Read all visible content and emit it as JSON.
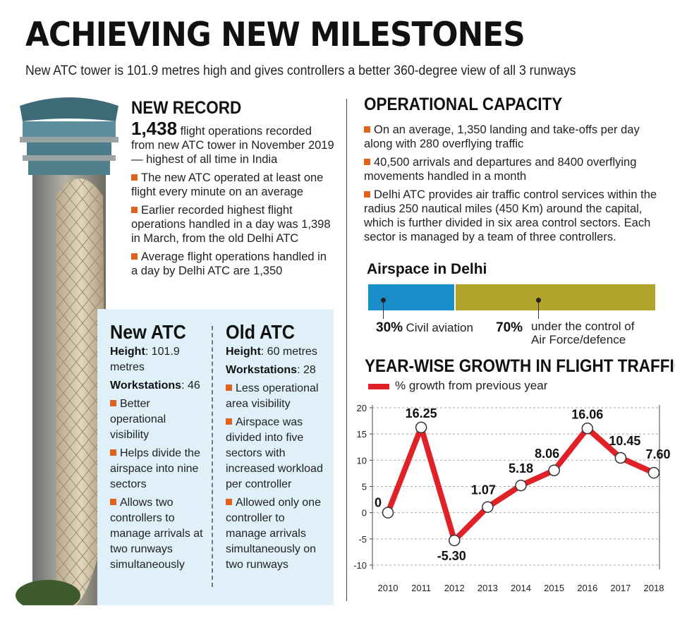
{
  "header": {
    "title": "ACHIEVING NEW MILESTONES",
    "subtitle": "New ATC tower is 101.9 metres high and gives controllers a better 360-degree view of all 3 runways"
  },
  "new_record": {
    "heading": "NEW RECORD",
    "big_number": "1,438",
    "lead": "flight operations recorded from new ATC tower in November 2019 — highest of all time in India",
    "bullets": [
      "The new ATC operated at least one flight every minute on an average",
      "Earlier recorded highest flight operations handled in a day was 1,398 in March, from the old Delhi ATC",
      "Average flight operations handled in a day by Delhi ATC are 1,350"
    ]
  },
  "new_atc": {
    "heading": "New ATC",
    "height_label": "Height",
    "height_value": ": 101.9 metres",
    "workstations_label": "Workstations",
    "workstations_value": ": 46",
    "bullets": [
      "Better operational visibility",
      "Helps divide the airspace into nine sectors",
      "Allows two controllers to manage arrivals at two runways simultaneously"
    ]
  },
  "old_atc": {
    "heading": "Old ATC",
    "height_label": "Height",
    "height_value": ": 60 metres",
    "workstations_label": "Workstations",
    "workstations_value": ": 28",
    "bullets": [
      "Less operational area visibility",
      "Airspace was divided into five sectors with increased workload per controller",
      "Allowed only one controller to manage arrivals simultaneously on two runways"
    ]
  },
  "operational_capacity": {
    "heading": "OPERATIONAL CAPACITY",
    "bullets": [
      "On an average, 1,350 landing and take-offs per day along with 280 overflying traffic",
      "40,500 arrivals and departures and 8400 overflying movements handled in a month",
      "Delhi ATC provides air traffic control services within the radius 250 nautical miles (450 Km) around the capital, which is further divided in six area control sectors. Each sector is managed by a team of three controllers."
    ]
  },
  "airspace": {
    "title": "Airspace in Delhi",
    "civil_pct": "30%",
    "civil_label": "Civil aviation",
    "civil_value": 30,
    "civil_color": "#1a8ec8",
    "af_pct": "70%",
    "af_label_1": "under the control of",
    "af_label_2": "Air Force/defence",
    "af_value": 70,
    "af_color": "#b0a52a"
  },
  "chart_data": {
    "type": "line",
    "title": "YEAR-WISE GROWTH IN FLIGHT TRAFFIC",
    "xlabel": "",
    "ylabel": "",
    "x": [
      "2010",
      "2011",
      "2012",
      "2013",
      "2014",
      "2015",
      "2016",
      "2017",
      "2018"
    ],
    "series": [
      {
        "name": "% growth from previous year",
        "values": [
          0,
          16.25,
          -5.3,
          1.07,
          5.18,
          8.06,
          16.06,
          10.45,
          7.6
        ],
        "labels": [
          "0",
          "16.25",
          "-5.30",
          "1.07",
          "5.18",
          "8.06",
          "16.06",
          "10.45",
          "7.60"
        ],
        "color": "#e02127"
      }
    ],
    "yticks": [
      "20",
      "15",
      "10",
      "5",
      "0",
      "-5",
      "-10"
    ],
    "ylim": [
      -10,
      20
    ],
    "grid": "horizontal-dashed",
    "legend": "top-left"
  }
}
